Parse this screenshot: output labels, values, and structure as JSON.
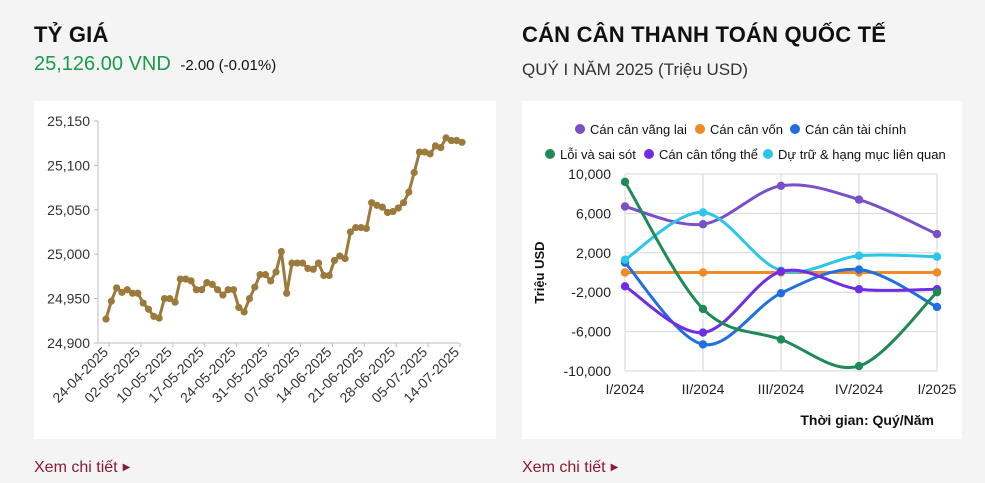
{
  "exchange": {
    "title": "TỶ GIÁ",
    "price": "25,126.00 VND",
    "change": "-2.00 (-0.01%)",
    "link_label": "Xem chi tiết",
    "line_color": "#9c7a3c",
    "chart_data": {
      "type": "line",
      "ylim": [
        24900,
        25150
      ],
      "yticks": [
        "24,900",
        "24,950",
        "25,000",
        "25,050",
        "25,100",
        "25,150"
      ],
      "xtick_labels": [
        "24-04-2025",
        "02-05-2025",
        "10-05-2025",
        "17-05-2025",
        "24-05-2025",
        "31-05-2025",
        "07-06-2025",
        "14-06-2025",
        "21-06-2025",
        "28-06-2025",
        "05-07-2025",
        "14-07-2025"
      ],
      "values": [
        24927,
        24947,
        24962,
        24957,
        24960,
        24956,
        24956,
        24945,
        24938,
        24930,
        24928,
        24950,
        24950,
        24946,
        24972,
        24972,
        24970,
        24960,
        24960,
        24968,
        24966,
        24960,
        24954,
        24960,
        24960,
        24940,
        24935,
        24950,
        24963,
        24977,
        24977,
        24970,
        24980,
        25003,
        24956,
        24990,
        24990,
        24990,
        24984,
        24983,
        24990,
        24976,
        24976,
        24993,
        24998,
        24995,
        25025,
        25030,
        25030,
        25029,
        25058,
        25055,
        25053,
        25047,
        25048,
        25052,
        25058,
        25070,
        25092,
        25115,
        25115,
        25113,
        25122,
        25120,
        25131,
        25128,
        25128,
        25126
      ]
    }
  },
  "balance": {
    "title": "CÁN CÂN THANH TOÁN QUỐC TẾ",
    "subtitle": "QUÝ I NĂM 2025 (Triệu USD)",
    "link_label": "Xem chi tiết",
    "chart_data": {
      "type": "line",
      "categories": [
        "I/2024",
        "II/2024",
        "III/2024",
        "IV/2024",
        "I/2025"
      ],
      "ylabel": "Triệu USD",
      "xlabel": "Thời gian: Quý/Năm",
      "ylim": [
        -10000,
        10000
      ],
      "yticks": [
        "-10,000",
        "-6,000",
        "-2,000",
        "2,000",
        "6,000",
        "10,000"
      ],
      "legend_position": "top",
      "series": [
        {
          "name": "Cán cân vãng lai",
          "color": "#7b4fc8",
          "values": [
            6700,
            4900,
            8800,
            7400,
            3900
          ]
        },
        {
          "name": "Cán cân vốn",
          "color": "#f08a24",
          "values": [
            0,
            0,
            0,
            0,
            0
          ]
        },
        {
          "name": "Cán cân tài chính",
          "color": "#1f6fe0",
          "values": [
            1000,
            -7300,
            -2100,
            300,
            -3500
          ]
        },
        {
          "name": "Lỗi và sai sót",
          "color": "#1f8a55",
          "values": [
            9200,
            -3700,
            -6800,
            -9500,
            -2000
          ]
        },
        {
          "name": "Cán cân tổng thể",
          "color": "#6d2ee6",
          "values": [
            -1400,
            -6100,
            100,
            -1700,
            -1700
          ]
        },
        {
          "name": "Dự trữ & hạng mục liên quan",
          "color": "#2bc6e8",
          "values": [
            1300,
            6100,
            200,
            1700,
            1600
          ]
        }
      ]
    }
  }
}
